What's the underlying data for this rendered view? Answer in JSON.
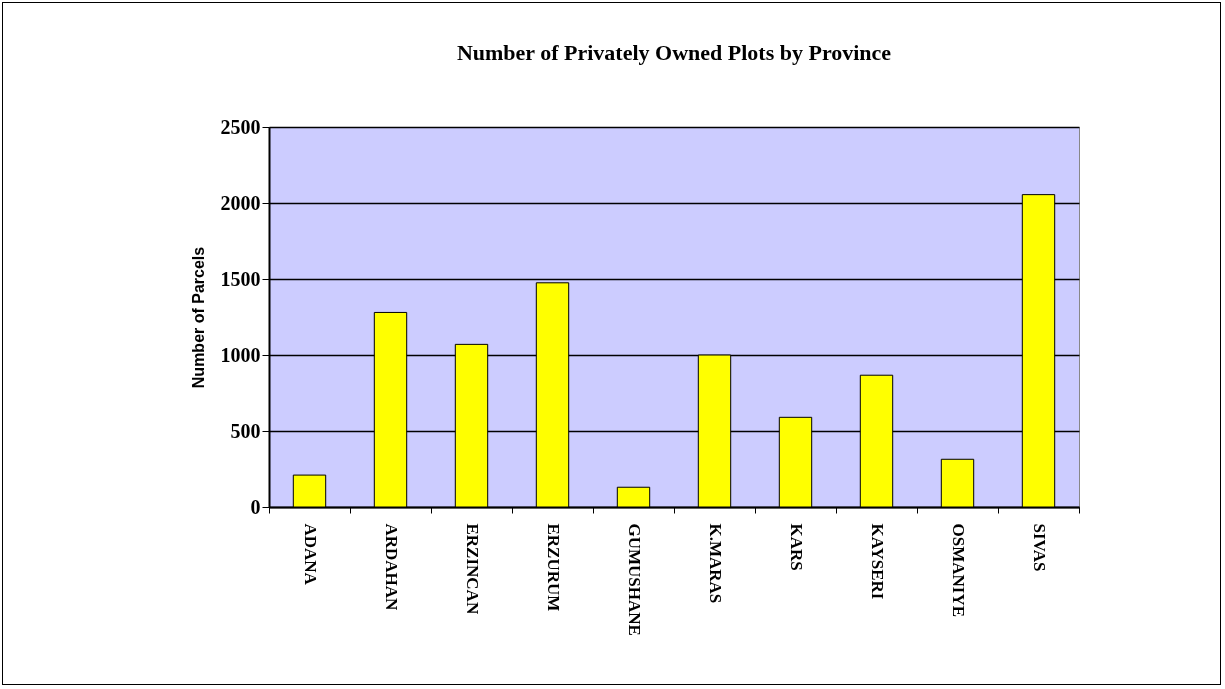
{
  "chart_data": {
    "type": "bar",
    "title": "Number of Privately Owned Plots by Province",
    "ylabel": "Number of Parcels",
    "categories": [
      "ADANA",
      "ARDAHAN",
      "ERZINCAN",
      "ERZURUM",
      "GUMUSHANE",
      "K.MARAS",
      "KARS",
      "KAYSERI",
      "OSMANIYE",
      "SIVAS"
    ],
    "values": [
      210,
      1280,
      1070,
      1475,
      130,
      1000,
      590,
      867,
      314,
      2055
    ],
    "color": "#ffff00",
    "ylim": [
      0,
      2500
    ],
    "yticks": [
      0,
      500,
      1000,
      1500,
      2000,
      2500
    ],
    "grid": "y"
  }
}
